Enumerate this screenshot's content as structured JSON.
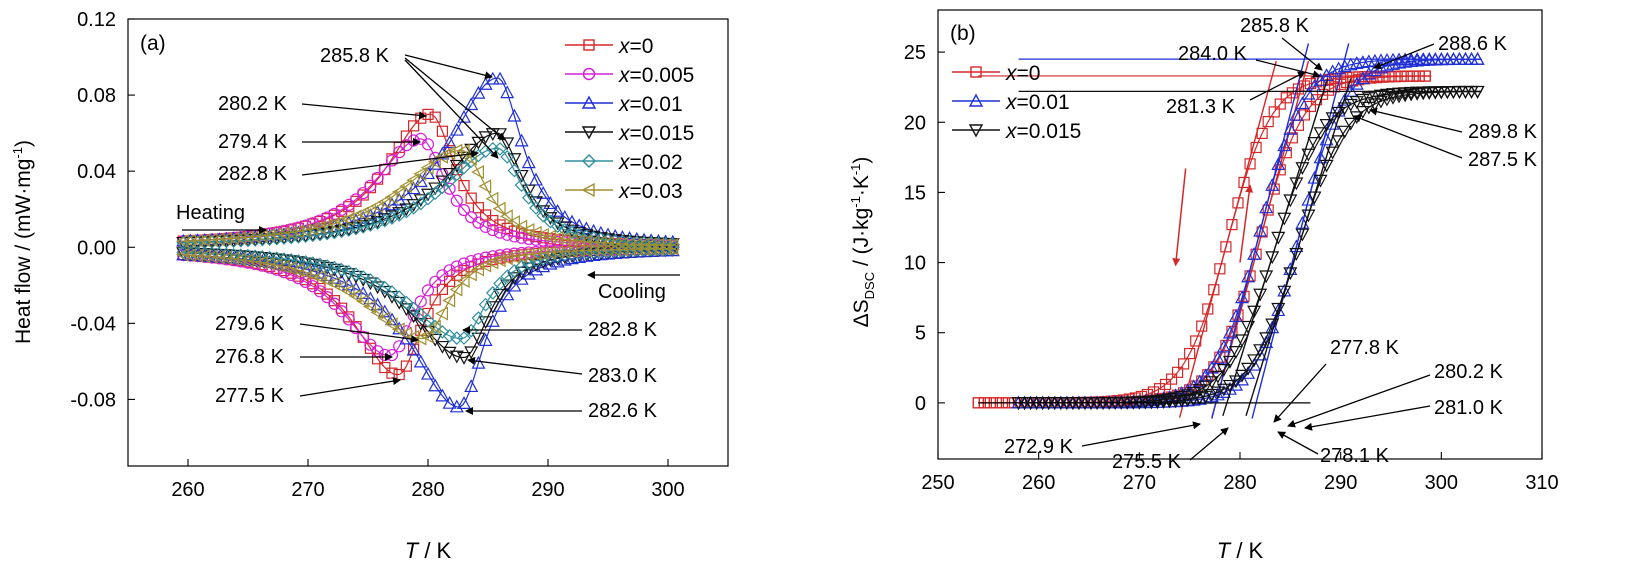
{
  "chart_data": [
    {
      "type": "line",
      "panel_label": "(a)",
      "xlabel_italic": "T",
      "xlabel_rest": " / K",
      "ylabel": "Heat flow / (mW·mg",
      "ylabel_sup": "-1",
      "ylabel_end": ")",
      "xlim": [
        255,
        305
      ],
      "ylim": [
        -0.115,
        0.12
      ],
      "xticks": [
        260,
        270,
        280,
        290,
        300
      ],
      "yticks": [
        -0.08,
        -0.04,
        0.0,
        0.04,
        0.08,
        0.12
      ],
      "ytick_labels": [
        "-0.08",
        "-0.04",
        "0.00",
        "0.04",
        "0.08",
        "0.12"
      ],
      "legend_position": "top-right",
      "series": [
        {
          "name_prefix": "x",
          "name_value": "=0",
          "color": "#d62728",
          "marker": "square",
          "heat_peak": [
            280.2,
            0.07
          ],
          "cool_peak": [
            277.5,
            -0.067
          ]
        },
        {
          "name_prefix": "x",
          "name_value": "=0.005",
          "color": "#d61fd6",
          "marker": "circle",
          "heat_peak": [
            279.4,
            0.057
          ],
          "cool_peak": [
            276.8,
            -0.057
          ]
        },
        {
          "name_prefix": "x",
          "name_value": "=0.01",
          "color": "#1f2fd6",
          "marker": "triangle-up",
          "heat_peak": [
            285.8,
            0.089
          ],
          "cool_peak": [
            282.6,
            -0.084
          ]
        },
        {
          "name_prefix": "x",
          "name_value": "=0.015",
          "color": "#111111",
          "marker": "triangle-down",
          "heat_peak": [
            285.8,
            0.06
          ],
          "cool_peak": [
            283.0,
            -0.058
          ]
        },
        {
          "name_prefix": "x",
          "name_value": "=0.02",
          "color": "#2f8f9f",
          "marker": "diamond",
          "heat_peak": [
            285.8,
            0.052
          ],
          "cool_peak": [
            282.8,
            -0.048
          ]
        },
        {
          "name_prefix": "x",
          "name_value": "=0.03",
          "color": "#a09030",
          "marker": "triangle-left",
          "heat_peak": [
            282.8,
            0.051
          ],
          "cool_peak": [
            279.6,
            -0.048
          ]
        }
      ],
      "annotations": [
        {
          "text": "285.8 K",
          "anchor": "start"
        },
        {
          "text": "280.2 K",
          "anchor": "start"
        },
        {
          "text": "279.4 K",
          "anchor": "start"
        },
        {
          "text": "282.8 K",
          "anchor": "start"
        },
        {
          "text": "279.6 K",
          "anchor": "start"
        },
        {
          "text": "276.8 K",
          "anchor": "start"
        },
        {
          "text": "277.5 K",
          "anchor": "start"
        },
        {
          "text": "282.8 K",
          "anchor": "start"
        },
        {
          "text": "283.0 K",
          "anchor": "start"
        },
        {
          "text": "282.6 K",
          "anchor": "start"
        },
        {
          "text": "Heating",
          "anchor": "start"
        },
        {
          "text": "Cooling",
          "anchor": "start"
        }
      ]
    },
    {
      "type": "line",
      "panel_label": "(b)",
      "xlabel_italic": "T",
      "xlabel_rest": " / K",
      "ylabel": "ΔS",
      "ylabel_sub": "DSC",
      "ylabel_mid": " / (J·kg",
      "ylabel_sup1": "-1",
      "ylabel_mid2": "·K",
      "ylabel_sup2": "-1",
      "ylabel_end": ")",
      "xlim": [
        250,
        310
      ],
      "ylim": [
        -4,
        28
      ],
      "xticks": [
        250,
        260,
        270,
        280,
        290,
        300,
        310
      ],
      "yticks": [
        0,
        5,
        10,
        15,
        20,
        25
      ],
      "legend_position": "top-left",
      "series": [
        {
          "name_prefix": "x",
          "name_value": "=0",
          "color": "#d62728",
          "marker": "square",
          "x_start": 254,
          "x_end": 299,
          "plateau": 23.3,
          "heat_mid": 282.0,
          "cool_mid": 278.8,
          "width": 2.2
        },
        {
          "name_prefix": "x",
          "name_value": "=0.01",
          "color": "#1f2fd6",
          "marker": "triangle-up",
          "x_start": 258,
          "x_end": 304,
          "plateau": 24.5,
          "heat_mid": 286.0,
          "cool_mid": 282.0,
          "width": 2.2
        },
        {
          "name_prefix": "x",
          "name_value": "=0.015",
          "color": "#111111",
          "marker": "triangle-down",
          "x_start": 258,
          "x_end": 304,
          "plateau": 22.2,
          "heat_mid": 285.8,
          "cool_mid": 283.5,
          "width": 2.4
        }
      ],
      "annotations": [
        {
          "text": "285.8 K",
          "anchor": "start"
        },
        {
          "text": "288.6 K",
          "anchor": "start"
        },
        {
          "text": "284.0 K",
          "anchor": "start"
        },
        {
          "text": "281.3 K",
          "anchor": "start"
        },
        {
          "text": "289.8 K",
          "anchor": "start"
        },
        {
          "text": "287.5 K",
          "anchor": "start"
        },
        {
          "text": "277.8 K",
          "anchor": "start"
        },
        {
          "text": "280.2 K",
          "anchor": "start"
        },
        {
          "text": "281.0 K",
          "anchor": "start"
        },
        {
          "text": "272.9 K",
          "anchor": "start"
        },
        {
          "text": "275.5 K",
          "anchor": "start"
        },
        {
          "text": "278.1 K",
          "anchor": "start"
        }
      ]
    }
  ]
}
